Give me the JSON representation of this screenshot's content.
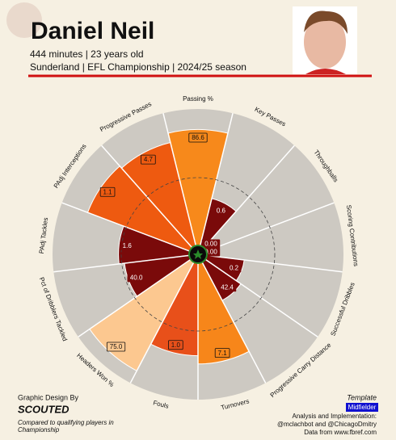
{
  "header": {
    "title": "Daniel Neil",
    "line1": "444 minutes | 23 years old",
    "line2": "Sunderland | EFL Championship | 2024/25 season"
  },
  "chart_data": {
    "type": "pizza",
    "categories": [
      "Passing %",
      "Key Passes",
      "Throughballs",
      "Scoring Contributions",
      "Successful Dribbles",
      "Progressive Carry Distance",
      "Turnovers",
      "Fouls",
      "Headers Won %",
      "Pct of Dribblers Tackled",
      "PAdj Tackles",
      "PAdj Interceptions",
      "Progressive Passes"
    ],
    "values": [
      85,
      36,
      0,
      0,
      28,
      32,
      74,
      68,
      90,
      48,
      52,
      80,
      78
    ],
    "stat_labels": [
      "86.6",
      "0.6",
      "0.00",
      "0.00",
      "0.2",
      "42.4",
      "7.1",
      "1.0",
      "75.0",
      "40.0",
      "1.6",
      "1.1",
      "4.7"
    ],
    "colors": [
      "#f7891b",
      "#7a0a0a",
      "#7a0a0a",
      "#7a0a0a",
      "#7a0a0a",
      "#7a0a0a",
      "#f7861a",
      "#e8501a",
      "#fcc890",
      "#7a0a0a",
      "#7a0a0a",
      "#ee5a10",
      "#ee5a10"
    ],
    "rlim": [
      0,
      100
    ]
  },
  "footer": {
    "design_by": "Graphic Design By",
    "brand": "SCOUTED",
    "compared": "Compared to qualifying players in Championship",
    "template": "Template",
    "position": "Midfielder",
    "analysis": "Analysis and Implementation:",
    "authors": "@mclachbot and @ChicagoDmitry",
    "source": "Data from www.fbref.com"
  }
}
